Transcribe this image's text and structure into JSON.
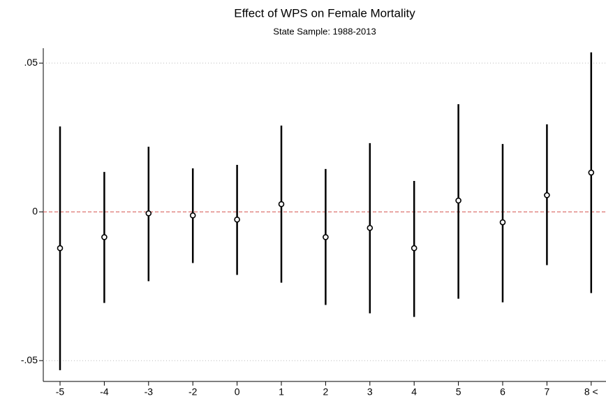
{
  "chart_data": {
    "type": "coefplot",
    "title": "Effect of WPS on Female Mortality",
    "subtitle": "State Sample: 1988-2013",
    "categories": [
      "-5",
      "-4",
      "-3",
      "-2",
      "0",
      "1",
      "2",
      "3",
      "4",
      "5",
      "6",
      "7",
      "8 <"
    ],
    "values": [
      -0.0122,
      -0.0085,
      -0.0005,
      -0.0012,
      -0.0026,
      0.0026,
      -0.0085,
      -0.0054,
      -0.0122,
      0.0038,
      -0.0035,
      0.0056,
      0.0132
    ],
    "lower": [
      -0.0532,
      -0.0306,
      -0.0233,
      -0.0172,
      -0.0212,
      -0.0238,
      -0.0313,
      -0.0341,
      -0.0353,
      -0.0292,
      -0.0304,
      -0.0179,
      -0.0273
    ],
    "upper": [
      0.0287,
      0.0134,
      0.0219,
      0.0146,
      0.0158,
      0.029,
      0.0144,
      0.0231,
      0.0104,
      0.0362,
      0.0228,
      0.0294,
      0.0536
    ],
    "color": "#000000",
    "reference_line": {
      "value": 0,
      "color": "#d9534f"
    },
    "ylim": [
      -0.057,
      0.055
    ],
    "yticks": [
      {
        "value": -0.05,
        "label": "-.05"
      },
      0,
      {
        "value": 0.05,
        "label": ".05"
      }
    ],
    "grid": true
  }
}
